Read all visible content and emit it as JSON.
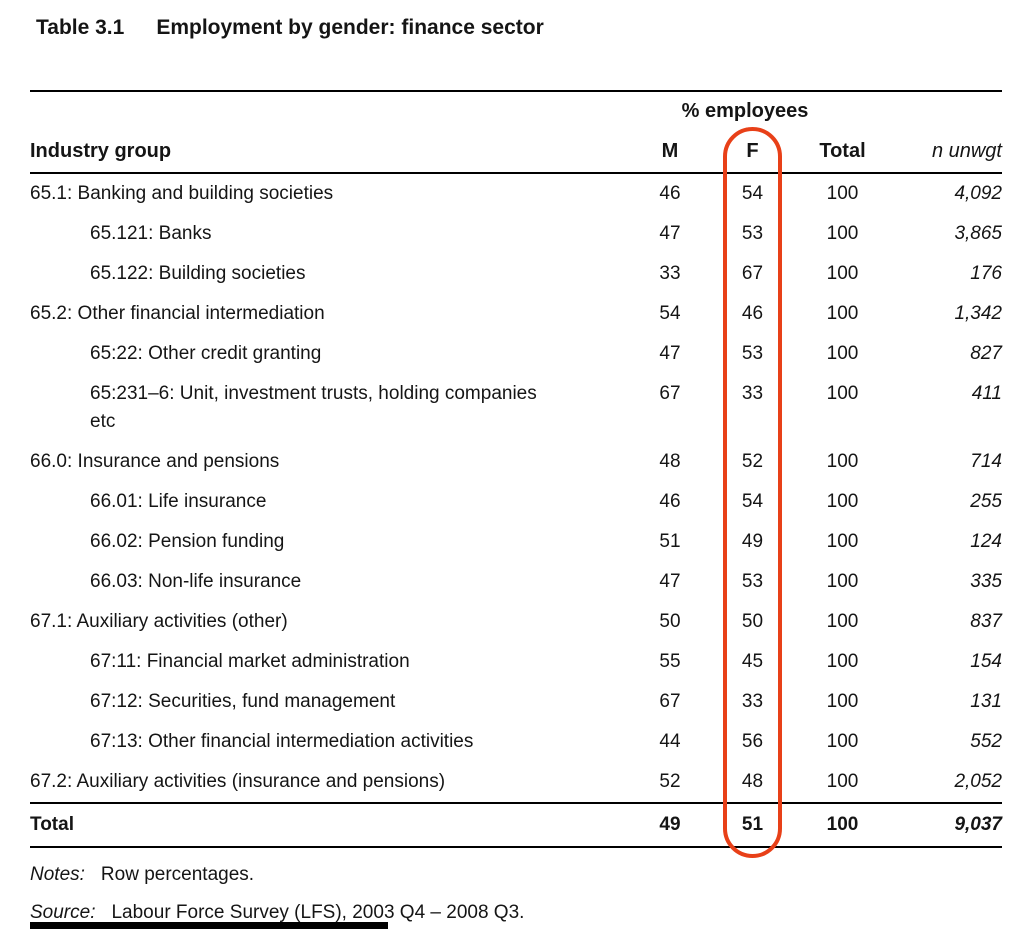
{
  "title": {
    "number": "Table 3.1",
    "text": "Employment by gender: finance sector"
  },
  "table": {
    "span_header": "% employees",
    "columns": {
      "industry": "Industry group",
      "m": "M",
      "f": "F",
      "total": "Total",
      "n": "n unwgt"
    },
    "rows": [
      {
        "label": "65.1: Banking and building societies",
        "m": "46",
        "f": "54",
        "total": "100",
        "n": "4,092"
      },
      {
        "label": "65.121: Banks",
        "m": "47",
        "f": "53",
        "total": "100",
        "n": "3,865"
      },
      {
        "label": "65.122: Building societies",
        "m": "33",
        "f": "67",
        "total": "100",
        "n": "176"
      },
      {
        "label": "65.2: Other financial intermediation",
        "m": "54",
        "f": "46",
        "total": "100",
        "n": "1,342"
      },
      {
        "label": "65:22: Other credit granting",
        "m": "47",
        "f": "53",
        "total": "100",
        "n": "827"
      },
      {
        "label": "65:231–6: Unit, investment trusts, holding companies etc",
        "m": "67",
        "f": "33",
        "total": "100",
        "n": "411"
      },
      {
        "label": "66.0: Insurance and pensions",
        "m": "48",
        "f": "52",
        "total": "100",
        "n": "714"
      },
      {
        "label": "66.01: Life insurance",
        "m": "46",
        "f": "54",
        "total": "100",
        "n": "255"
      },
      {
        "label": "66.02: Pension funding",
        "m": "51",
        "f": "49",
        "total": "100",
        "n": "124"
      },
      {
        "label": "66.03: Non-life insurance",
        "m": "47",
        "f": "53",
        "total": "100",
        "n": "335"
      },
      {
        "label": "67.1: Auxiliary activities (other)",
        "m": "50",
        "f": "50",
        "total": "100",
        "n": "837"
      },
      {
        "label": "67:11: Financial market administration",
        "m": "55",
        "f": "45",
        "total": "100",
        "n": "154"
      },
      {
        "label": "67:12: Securities, fund management",
        "m": "67",
        "f": "33",
        "total": "100",
        "n": "131"
      },
      {
        "label": "67:13: Other financial intermediation activities",
        "m": "44",
        "f": "56",
        "total": "100",
        "n": "552"
      },
      {
        "label": "67.2: Auxiliary activities (insurance and pensions)",
        "m": "52",
        "f": "48",
        "total": "100",
        "n": "2,052"
      }
    ],
    "total_row": {
      "label": "Total",
      "m": "49",
      "f": "51",
      "total": "100",
      "n": "9,037"
    }
  },
  "footer": {
    "notes_label": "Notes:",
    "notes_text": "Row percentages.",
    "source_label": "Source:",
    "source_text": "Labour Force Survey (LFS), 2003 Q4 – 2008 Q3."
  },
  "annotation": {
    "highlight_color": "#e84018",
    "highlighted_column": "F"
  }
}
